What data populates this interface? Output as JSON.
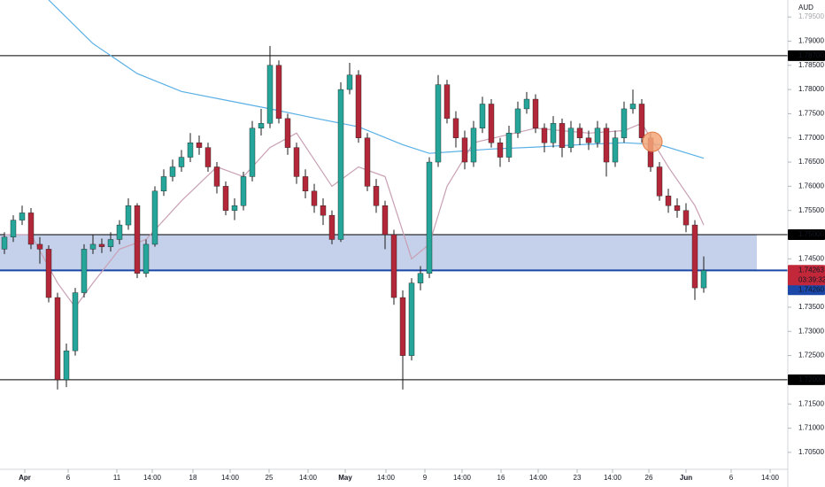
{
  "chart_data": {
    "type": "candlestick",
    "currency": "AUD",
    "countdown": "03:39:32",
    "up_color": "#26a69a",
    "down_color": "#b2283a",
    "xlim": [
      -0.5,
      88.5
    ],
    "ylim": [
      1.7015,
      1.7985
    ],
    "xticks": [
      {
        "value": 2.3,
        "label": "Apr"
      },
      {
        "value": 7.2,
        "label": "6"
      },
      {
        "value": 12.7,
        "label": "11"
      },
      {
        "value": 16.7,
        "label": "14:00"
      },
      {
        "value": 21.3,
        "label": "18"
      },
      {
        "value": 25.5,
        "label": "14:00"
      },
      {
        "value": 29.9,
        "label": "25"
      },
      {
        "value": 34.3,
        "label": "14:00"
      },
      {
        "value": 38.5,
        "label": "May"
      },
      {
        "value": 43.1,
        "label": "14:00"
      },
      {
        "value": 47.5,
        "label": "9"
      },
      {
        "value": 51.7,
        "label": "14:00"
      },
      {
        "value": 56.1,
        "label": "16"
      },
      {
        "value": 60.3,
        "label": "14:00"
      },
      {
        "value": 64.7,
        "label": "23"
      },
      {
        "value": 68.7,
        "label": "14:00"
      },
      {
        "value": 72.8,
        "label": "26"
      },
      {
        "value": 77,
        "label": "Jun"
      },
      {
        "value": 82.1,
        "label": "6"
      },
      {
        "value": 86.5,
        "label": "14:00"
      }
    ],
    "yticks": [
      {
        "value": 1.795,
        "label": "1.79500"
      },
      {
        "value": 1.79,
        "label": "1.79000"
      },
      {
        "value": 1.785,
        "label": "1.78500"
      },
      {
        "value": 1.78,
        "label": "1.78000"
      },
      {
        "value": 1.775,
        "label": "1.77500"
      },
      {
        "value": 1.77,
        "label": "1.77000"
      },
      {
        "value": 1.765,
        "label": "1.76500"
      },
      {
        "value": 1.76,
        "label": "1.76000"
      },
      {
        "value": 1.755,
        "label": "1.75500"
      },
      {
        "value": 1.745,
        "label": "1.74500"
      },
      {
        "value": 1.735,
        "label": "1.73500"
      },
      {
        "value": 1.73,
        "label": "1.73000"
      },
      {
        "value": 1.725,
        "label": "1.72500"
      },
      {
        "value": 1.715,
        "label": "1.71500"
      },
      {
        "value": 1.71,
        "label": "1.71000"
      },
      {
        "value": 1.705,
        "label": "1.70500"
      }
    ],
    "open": [
      1.747,
      1.7495,
      1.753,
      1.7545,
      1.748,
      1.747,
      1.737,
      1.72,
      1.726,
      1.738,
      1.747,
      1.748,
      1.7475,
      1.749,
      1.752,
      1.756,
      1.742,
      1.748,
      1.759,
      1.762,
      1.764,
      1.766,
      1.769,
      1.768,
      1.764,
      1.76,
      1.755,
      1.756,
      1.762,
      1.772,
      1.773,
      1.785,
      1.774,
      1.768,
      1.762,
      1.759,
      1.756,
      1.754,
      1.749,
      1.78,
      1.783,
      1.77,
      1.76,
      1.756,
      1.75,
      1.737,
      1.725,
      1.74,
      1.742,
      1.765,
      1.781,
      1.774,
      1.77,
      1.765,
      1.772,
      1.777,
      1.769,
      1.766,
      1.771,
      1.776,
      1.778,
      1.772,
      1.769,
      1.773,
      1.768,
      1.772,
      1.77,
      1.769,
      1.772,
      1.765,
      1.77,
      1.776,
      1.777,
      1.77,
      1.764,
      1.758,
      1.756,
      1.755,
      1.752,
      1.739
    ],
    "high": [
      1.7505,
      1.754,
      1.756,
      1.7555,
      1.7495,
      1.7478,
      1.738,
      1.7275,
      1.739,
      1.748,
      1.75,
      1.7492,
      1.7505,
      1.753,
      1.7575,
      1.7565,
      1.749,
      1.76,
      1.7635,
      1.7655,
      1.7675,
      1.771,
      1.7705,
      1.769,
      1.765,
      1.761,
      1.7575,
      1.763,
      1.7735,
      1.776,
      1.789,
      1.786,
      1.775,
      1.769,
      1.7635,
      1.7605,
      1.7575,
      1.755,
      1.7815,
      1.7855,
      1.784,
      1.771,
      1.7615,
      1.757,
      1.751,
      1.7385,
      1.741,
      1.7435,
      1.766,
      1.783,
      1.782,
      1.7755,
      1.7715,
      1.7735,
      1.7785,
      1.778,
      1.77,
      1.7725,
      1.7775,
      1.7795,
      1.779,
      1.773,
      1.7745,
      1.774,
      1.7735,
      1.773,
      1.7715,
      1.7735,
      1.773,
      1.7715,
      1.7775,
      1.78,
      1.778,
      1.771,
      1.765,
      1.7595,
      1.7575,
      1.7565,
      1.753,
      1.7455
    ],
    "low": [
      1.746,
      1.7485,
      1.752,
      1.747,
      1.744,
      1.736,
      1.718,
      1.7185,
      1.725,
      1.737,
      1.746,
      1.7462,
      1.7465,
      1.748,
      1.751,
      1.741,
      1.7412,
      1.7475,
      1.758,
      1.761,
      1.763,
      1.765,
      1.7665,
      1.763,
      1.7585,
      1.754,
      1.753,
      1.755,
      1.761,
      1.7705,
      1.772,
      1.773,
      1.7665,
      1.7605,
      1.7575,
      1.7545,
      1.752,
      1.748,
      1.7485,
      1.779,
      1.769,
      1.759,
      1.7545,
      1.747,
      1.7355,
      1.718,
      1.724,
      1.7385,
      1.741,
      1.764,
      1.773,
      1.768,
      1.7635,
      1.764,
      1.771,
      1.768,
      1.764,
      1.765,
      1.77,
      1.775,
      1.771,
      1.767,
      1.768,
      1.766,
      1.767,
      1.7685,
      1.7675,
      1.768,
      1.762,
      1.764,
      1.769,
      1.775,
      1.769,
      1.763,
      1.757,
      1.7545,
      1.7535,
      1.7505,
      1.7365,
      1.738
    ],
    "close": [
      1.7495,
      1.753,
      1.7545,
      1.748,
      1.747,
      1.737,
      1.72,
      1.726,
      1.738,
      1.747,
      1.748,
      1.7475,
      1.749,
      1.752,
      1.756,
      1.742,
      1.748,
      1.759,
      1.762,
      1.764,
      1.766,
      1.769,
      1.768,
      1.764,
      1.76,
      1.755,
      1.756,
      1.762,
      1.772,
      1.773,
      1.785,
      1.774,
      1.768,
      1.762,
      1.759,
      1.756,
      1.754,
      1.749,
      1.78,
      1.783,
      1.77,
      1.76,
      1.756,
      1.75,
      1.737,
      1.725,
      1.74,
      1.742,
      1.765,
      1.781,
      1.774,
      1.77,
      1.765,
      1.772,
      1.777,
      1.769,
      1.766,
      1.771,
      1.776,
      1.778,
      1.772,
      1.769,
      1.773,
      1.768,
      1.772,
      1.77,
      1.769,
      1.772,
      1.765,
      1.77,
      1.776,
      1.777,
      1.77,
      1.764,
      1.758,
      1.756,
      1.755,
      1.752,
      1.739,
      1.74263
    ],
    "moving_averages": [
      {
        "color": "#5ab0e6",
        "x": [
          5,
          10,
          15,
          20,
          25,
          30,
          35,
          40,
          45,
          48,
          55,
          60,
          65,
          70,
          74,
          79
        ],
        "values": [
          1.7985,
          1.7895,
          1.7833,
          1.7796,
          1.7778,
          1.776,
          1.7741,
          1.7723,
          1.7686,
          1.7668,
          1.7677,
          1.7681,
          1.7686,
          1.769,
          1.7686,
          1.7658
        ]
      },
      {
        "color": "#c9a0b4",
        "x": [
          0,
          3,
          6,
          8,
          10,
          13,
          16,
          20,
          24,
          27,
          30,
          33,
          37,
          40,
          43,
          46,
          48,
          50,
          53,
          60,
          66,
          70,
          72,
          75,
          78,
          79
        ],
        "values": [
          1.75,
          1.75,
          1.74,
          1.735,
          1.74,
          1.747,
          1.749,
          1.757,
          1.764,
          1.762,
          1.768,
          1.771,
          1.76,
          1.764,
          1.762,
          1.745,
          1.748,
          1.76,
          1.769,
          1.772,
          1.771,
          1.7715,
          1.773,
          1.764,
          1.756,
          1.752
        ]
      }
    ],
    "zone": {
      "from": 1.7426,
      "to": 1.75,
      "end_x": 85,
      "color": "#9fb0dc"
    },
    "levels": [
      {
        "value": 1.787,
        "label": "1.78700",
        "color": "#000000"
      },
      {
        "value": 1.75,
        "label": "1.75000",
        "color": "#000000"
      },
      {
        "value": 1.7426,
        "label": "1.74260",
        "color": "#1a47a8"
      },
      {
        "value": 1.72,
        "label": "1.72000",
        "color": "#000000"
      }
    ],
    "current_price": {
      "value": 1.74263,
      "label": "1.74263",
      "color": "#c2283a"
    },
    "marker": {
      "x": 73.2,
      "y": 1.7692,
      "color": "#f5a77a"
    }
  }
}
